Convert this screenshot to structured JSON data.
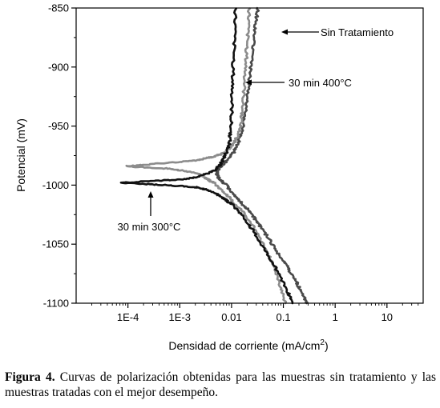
{
  "chart_data": {
    "type": "line",
    "xlabel": "Densidad de corriente (mA/cm",
    "xlabel_sup": "2",
    "xlabel_end": ")",
    "ylabel": "Potencial (mV)",
    "x_scale": "log",
    "xlim": [
      1e-05,
      50
    ],
    "ylim": [
      -1100,
      -850
    ],
    "x_ticks": [
      {
        "value": 0.0001,
        "label": "1E-4"
      },
      {
        "value": 0.001,
        "label": "1E-3"
      },
      {
        "value": 0.01,
        "label": "0.01"
      },
      {
        "value": 0.1,
        "label": "0.1"
      },
      {
        "value": 1,
        "label": "1"
      },
      {
        "value": 10,
        "label": "10"
      }
    ],
    "y_ticks": [
      {
        "value": -850,
        "label": "-850"
      },
      {
        "value": -900,
        "label": "-900"
      },
      {
        "value": -950,
        "label": "-950"
      },
      {
        "value": -1000,
        "label": "-1000"
      },
      {
        "value": -1050,
        "label": "-1050"
      },
      {
        "value": -1100,
        "label": "-1100"
      }
    ],
    "grid": false,
    "series": [
      {
        "name": "Sin Tratamiento",
        "color": "#4a4a4a",
        "x": [
          0.032,
          0.03,
          0.027,
          0.025,
          0.023,
          0.021,
          0.019,
          0.017,
          0.015,
          0.013,
          0.011,
          0.009,
          0.0075,
          0.0062,
          0.0055,
          0.0052,
          0.0055,
          0.0062,
          0.0075,
          0.009,
          0.011,
          0.014,
          0.018,
          0.023,
          0.03,
          0.04,
          0.055,
          0.075,
          0.1,
          0.13,
          0.17,
          0.21,
          0.25,
          0.28
        ],
        "y": [
          -850,
          -860,
          -875,
          -890,
          -905,
          -920,
          -935,
          -948,
          -958,
          -966,
          -972,
          -977,
          -981,
          -984,
          -987,
          -990,
          -993,
          -996,
          -999,
          -1003,
          -1008,
          -1013,
          -1018,
          -1023,
          -1030,
          -1038,
          -1047,
          -1056,
          -1064,
          -1072,
          -1080,
          -1088,
          -1095,
          -1100
        ]
      },
      {
        "name": "30 min 400°C",
        "color": "#8c8c8c",
        "x": [
          0.022,
          0.021,
          0.02,
          0.019,
          0.018,
          0.017,
          0.016,
          0.015,
          0.013,
          0.011,
          0.009,
          0.0075,
          0.006,
          0.0045,
          0.0032,
          0.0022,
          0.0013,
          0.0006,
          0.0002,
          9e-05,
          0.0002,
          0.0006,
          0.0013,
          0.0022,
          0.0032,
          0.0045,
          0.006,
          0.008,
          0.011,
          0.016,
          0.024,
          0.035,
          0.05,
          0.07,
          0.09,
          0.11
        ],
        "y": [
          -850,
          -865,
          -880,
          -895,
          -910,
          -925,
          -938,
          -950,
          -959,
          -965,
          -969,
          -972,
          -974,
          -976,
          -977,
          -979,
          -980,
          -981,
          -983,
          -984,
          -985,
          -986,
          -988,
          -990,
          -994,
          -998,
          -1003,
          -1008,
          -1015,
          -1022,
          -1032,
          -1044,
          -1058,
          -1072,
          -1087,
          -1100
        ]
      },
      {
        "name": "30 min 300°C",
        "color": "#111111",
        "x": [
          0.012,
          0.0115,
          0.011,
          0.0105,
          0.0102,
          0.01,
          0.0095,
          0.009,
          0.008,
          0.007,
          0.006,
          0.0048,
          0.0035,
          0.0022,
          0.0012,
          0.0005,
          0.0002,
          7e-05,
          0.0002,
          0.0005,
          0.0012,
          0.0022,
          0.0035,
          0.005,
          0.007,
          0.01,
          0.015,
          0.022,
          0.032,
          0.045,
          0.065,
          0.09,
          0.12,
          0.15
        ],
        "y": [
          -850,
          -870,
          -890,
          -910,
          -925,
          -940,
          -955,
          -965,
          -972,
          -978,
          -983,
          -987,
          -990,
          -993,
          -995,
          -996,
          -997,
          -998,
          -999,
          -1000,
          -1001,
          -1002,
          -1004,
          -1007,
          -1011,
          -1016,
          -1024,
          -1034,
          -1045,
          -1056,
          -1067,
          -1078,
          -1090,
          -1100
        ]
      }
    ],
    "annotations": [
      {
        "text": "Sin Tratamiento",
        "series": 0
      },
      {
        "text": "30 min 400°C",
        "series": 1
      },
      {
        "text": "30 min 300°C",
        "series": 2
      }
    ]
  },
  "caption": {
    "label": "Figura 4.",
    "text": " Curvas de polarización obtenidas para las muestras sin tratamiento y las muestras tratadas con el mejor desempeño."
  }
}
